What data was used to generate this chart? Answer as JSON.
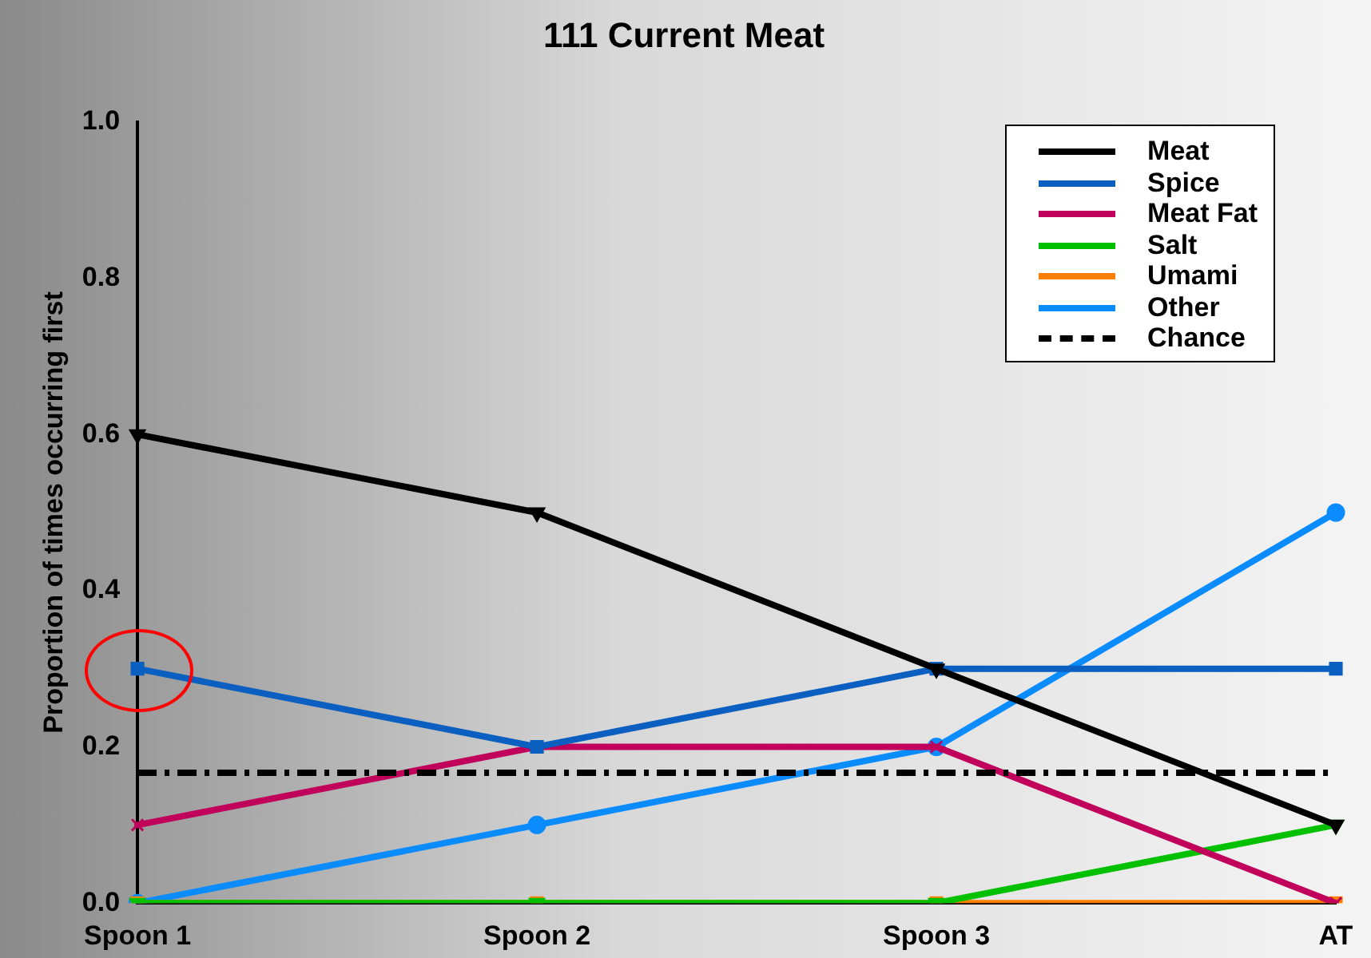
{
  "chart_data": {
    "type": "line",
    "title": "111 Current Meat",
    "ylabel": "Proportion of times occurring first",
    "categories": [
      "Spoon 1",
      "Spoon 2",
      "Spoon 3",
      "AT"
    ],
    "series": [
      {
        "name": "Meat",
        "color": "#000000",
        "values": [
          0.6,
          0.5,
          0.3,
          0.1
        ],
        "marker": "triangle"
      },
      {
        "name": "Spice",
        "color": "#0a5fc0",
        "values": [
          0.3,
          0.2,
          0.3,
          0.3
        ],
        "marker": "square"
      },
      {
        "name": "Meat Fat",
        "color": "#c0005a",
        "values": [
          0.1,
          0.2,
          0.2,
          0.0
        ],
        "marker": "cross"
      },
      {
        "name": "Salt",
        "color": "#00c000",
        "values": [
          0.0,
          0.0,
          0.0,
          0.1
        ],
        "marker": "triangle"
      },
      {
        "name": "Umami",
        "color": "#ff8000",
        "values": [
          0.0,
          0.0,
          0.0,
          0.0
        ],
        "marker": "square"
      },
      {
        "name": "Other",
        "color": "#0a8cff",
        "values": [
          0.0,
          0.1,
          0.2,
          0.5
        ],
        "marker": "circle"
      }
    ],
    "ref_lines": [
      {
        "axis": "y",
        "value": 0.1667,
        "label": "Chance",
        "color": "#000000",
        "line_style": "dashdot"
      }
    ],
    "ylim": [
      0,
      1
    ],
    "yticks": [
      {
        "value": 0,
        "label": "0.0"
      },
      {
        "value": 0.2,
        "label": "0.2"
      },
      {
        "value": 0.4,
        "label": "0.4"
      },
      {
        "value": 0.6,
        "label": "0.6"
      },
      {
        "value": 0.8,
        "label": "0.8"
      },
      {
        "value": 1,
        "label": "1.0"
      }
    ],
    "grid": false,
    "legend": "top right",
    "line_style": "solid"
  }
}
